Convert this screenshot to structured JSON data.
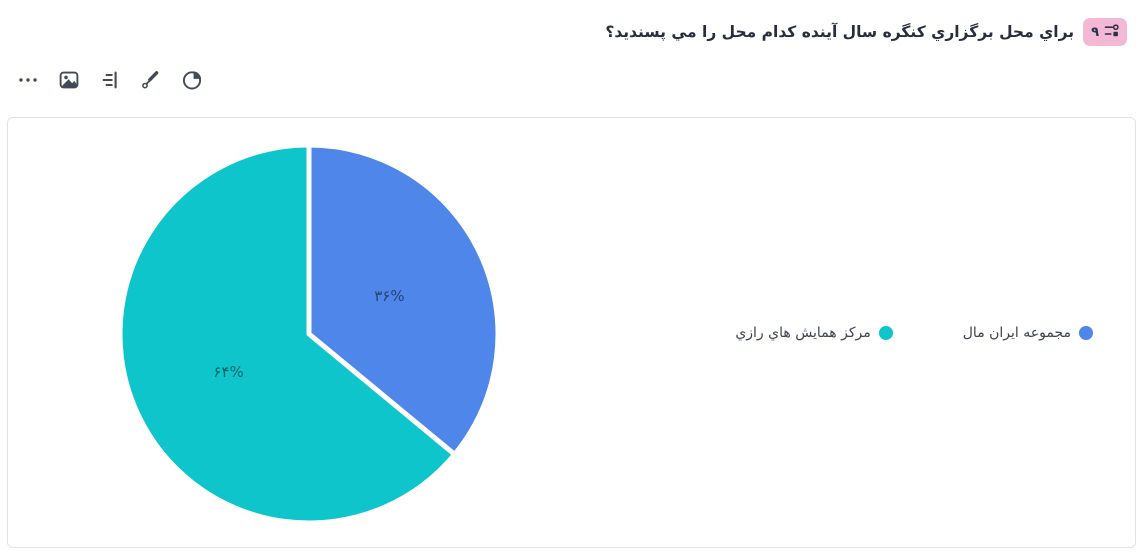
{
  "header": {
    "question_number": "۹",
    "badge_color": "#f3b8d3",
    "question_text": "براي محل برگزاري کنگره سال آينده کدام محل را مي پسنديد؟"
  },
  "toolbar": {
    "icons": [
      "more-options",
      "image",
      "align-lines",
      "pen",
      "pie-chart"
    ]
  },
  "chart_data": {
    "type": "pie",
    "title": "",
    "legend_position": "right-middle",
    "start_angle": "top",
    "direction": "clockwise",
    "series": [
      {
        "name": "مجموعه ايران مال",
        "value": 36,
        "percent_label": "۳۶%",
        "color": "#4e86ea"
      },
      {
        "name": "مرکز همايش هاي رازي",
        "value": 64,
        "percent_label": "۶۴%",
        "color": "#0dc5cb"
      }
    ],
    "slice_border_color": "#ffffff",
    "label_color": "rgba(0,0,0,0.5)"
  }
}
